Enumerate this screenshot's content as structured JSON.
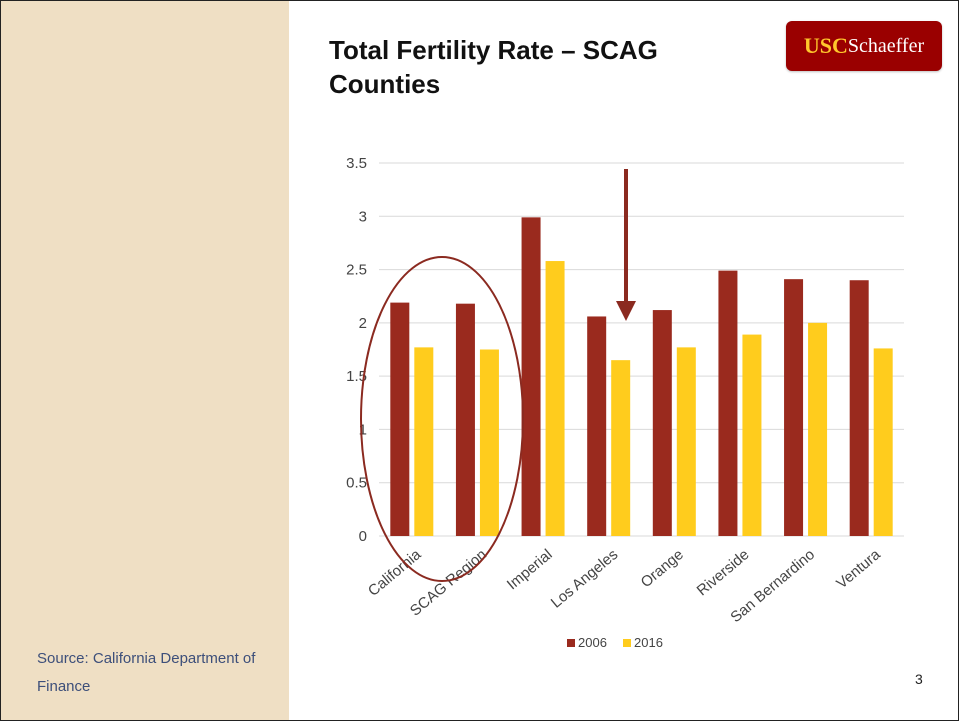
{
  "slide": {
    "title": "Total Fertility Rate – SCAG Counties",
    "source": "Source: California Department of Finance",
    "page_number": "3"
  },
  "logo": {
    "usc": "USC",
    "schaeffer": "Schaeffer"
  },
  "colors": {
    "sidebar": "#efdfc4",
    "series_2006": "#9a2a1e",
    "series_2016": "#ffcc1d",
    "annotation": "#8b2a20"
  },
  "chart_data": {
    "type": "bar",
    "title": "",
    "xlabel": "",
    "ylabel": "",
    "categories": [
      "California",
      "SCAG Region",
      "Imperial",
      "Los Angeles",
      "Orange",
      "Riverside",
      "San Bernardino",
      "Ventura"
    ],
    "series": [
      {
        "name": "2006",
        "values": [
          2.19,
          2.18,
          2.99,
          2.06,
          2.12,
          2.49,
          2.41,
          2.4
        ]
      },
      {
        "name": "2016",
        "values": [
          1.77,
          1.75,
          2.58,
          1.65,
          1.77,
          1.89,
          2.0,
          1.76
        ]
      }
    ],
    "ylim": [
      0,
      3.5
    ],
    "yticks": [
      "0",
      "0.5",
      "1",
      "1.5",
      "2",
      "2.5",
      "3",
      "3.5"
    ],
    "grid": true,
    "legend_position": "bottom"
  }
}
